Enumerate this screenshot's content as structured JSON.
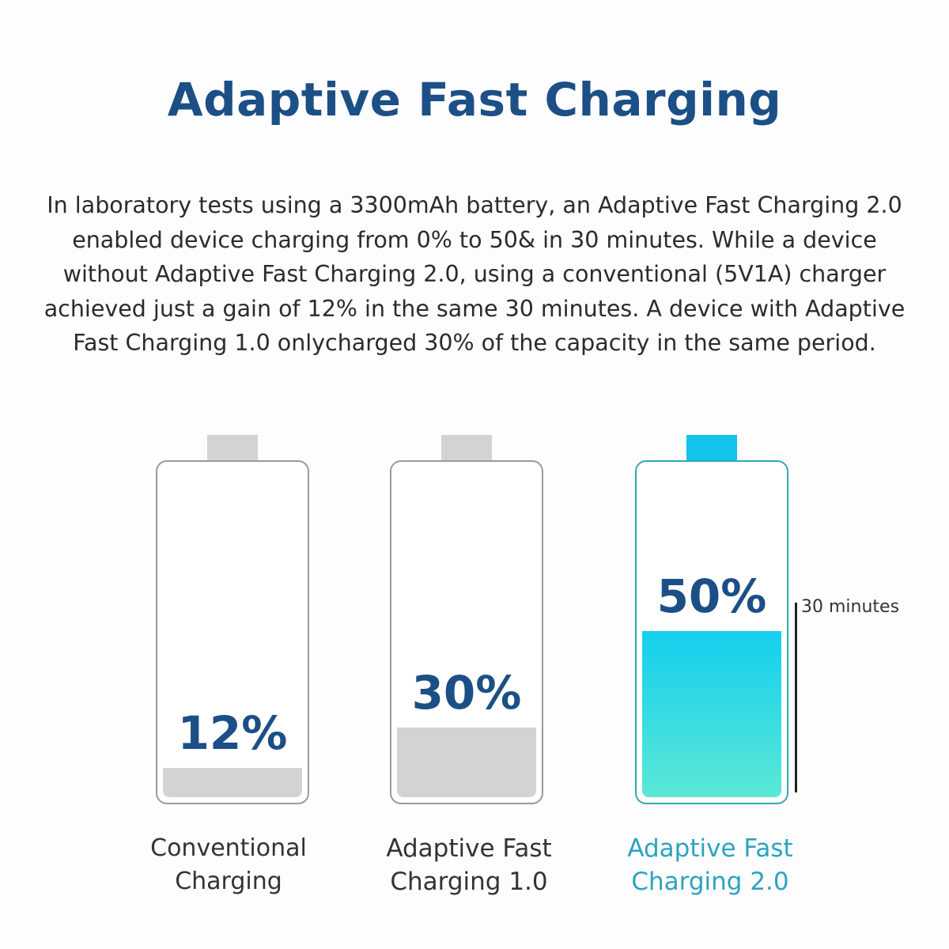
{
  "title": "Adaptive Fast Charging",
  "description": "In laboratory tests using a 3300mAh battery, an Adaptive Fast Charging 2.0 enabled device charging from 0% to 50& in 30 minutes. While a device without Adaptive Fast Charging 2.0, using a conventional (5V1A) charger achieved just a gain of 12% in the same 30 minutes. A device with Adaptive Fast Charging 1.0 onlycharged 30% of the capacity in the same period.",
  "chart_data": {
    "type": "bar",
    "title": "",
    "xlabel": "",
    "ylabel": "",
    "ylim": [
      0,
      100
    ],
    "grid": false,
    "categories": [
      [
        "Conventional",
        "Charging"
      ],
      [
        "Adaptive Fast",
        "Charging 1.0"
      ],
      [
        "Adaptive Fast",
        "Charging 2.0"
      ]
    ],
    "values": [
      12,
      30,
      50
    ],
    "value_labels": [
      "12%",
      "30%",
      "50%"
    ],
    "annotation": "30 minutes"
  },
  "colors": {
    "title": "#1c4f86",
    "inactive_fill": "#d3d3d3",
    "inactive_cap": "#d3d3d3",
    "inactive_border": "#9a9a9a",
    "highlight_fill_top": "#14cfee",
    "highlight_fill_bottom": "#5be8d6",
    "highlight_cap": "#13c3ec",
    "highlight_border": "#2fa9ba",
    "highlight_label": "#2ba3c2"
  },
  "highlight_index": 2
}
